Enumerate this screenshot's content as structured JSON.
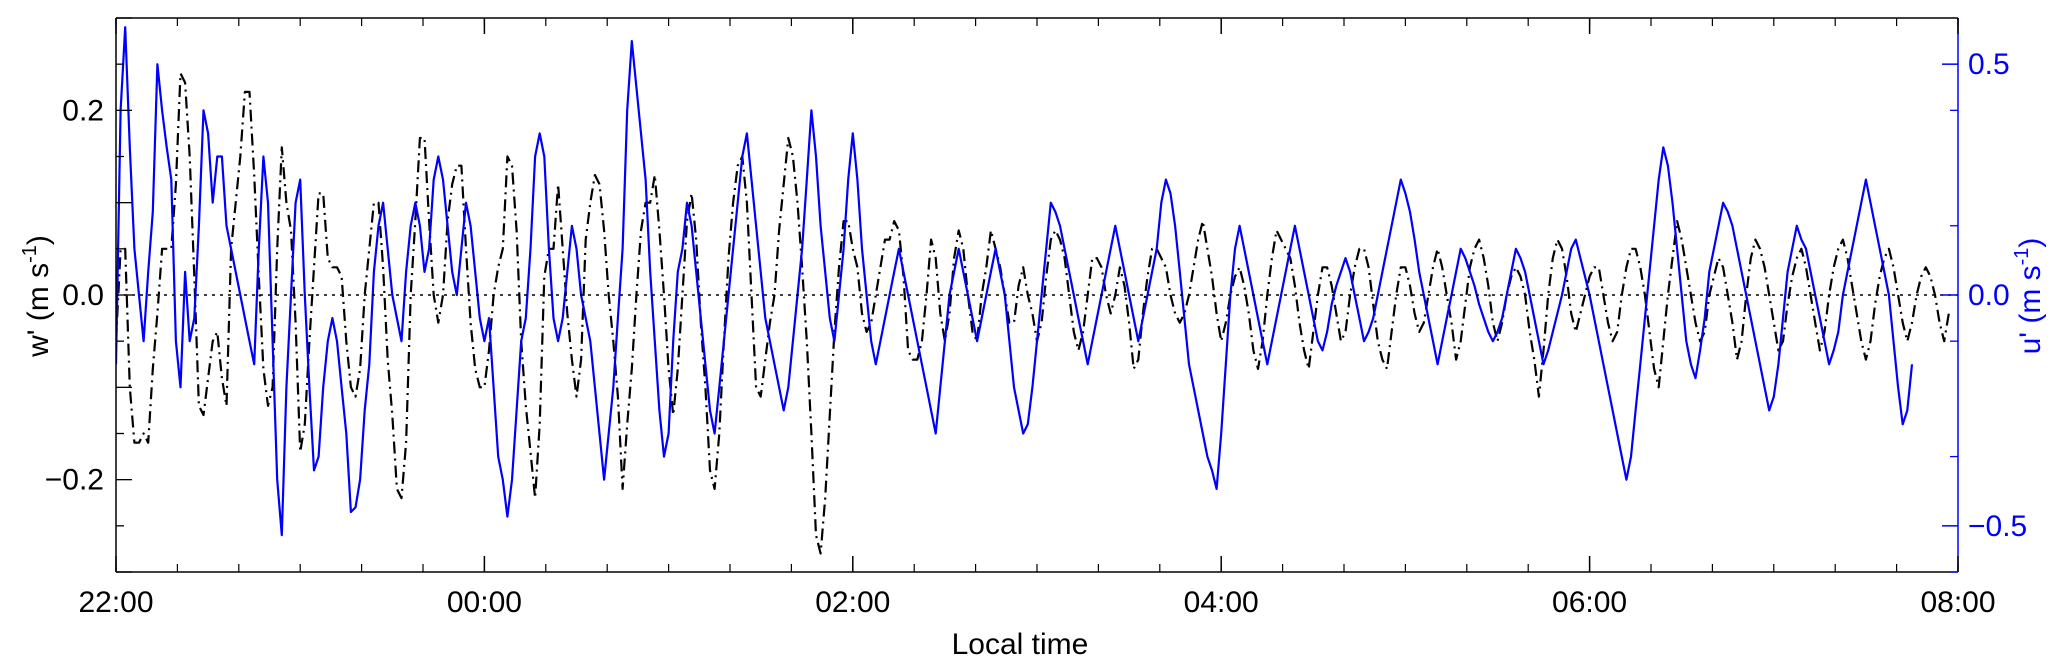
{
  "chart_data": {
    "type": "line",
    "xlabel": "Local time",
    "ylabel_left": "w' (m s",
    "ylabel_left_sup": "-1",
    "ylabel_left_end": ")",
    "ylabel_right": "u' (m s",
    "ylabel_right_sup": "-1",
    "ylabel_right_end": ")",
    "xlim_hours": [
      0,
      10
    ],
    "x_tick_labels": [
      {
        "h": 0,
        "label": "22:00"
      },
      {
        "h": 2,
        "label": "00:00"
      },
      {
        "h": 4,
        "label": "02:00"
      },
      {
        "h": 6,
        "label": "04:00"
      },
      {
        "h": 8,
        "label": "06:00"
      },
      {
        "h": 10,
        "label": "08:00"
      }
    ],
    "x_minor_step_hours": 0.333333,
    "ylim_left": [
      -0.3,
      0.3
    ],
    "y_left_ticks": [
      {
        "v": 0.2,
        "label": "0.2"
      },
      {
        "v": 0.0,
        "label": "0.0"
      },
      {
        "v": -0.2,
        "label": "−0.2"
      }
    ],
    "ylim_right": [
      -0.6,
      0.6
    ],
    "y_right_ticks": [
      {
        "v": 0.5,
        "label": "0.5"
      },
      {
        "v": 0.0,
        "label": "0.0"
      },
      {
        "v": -0.5,
        "label": "−0.5"
      }
    ],
    "zero_line": true,
    "colors": {
      "w": "#000000",
      "u": "#0000ff",
      "axes": "#000000",
      "right_axis": "#0000ff"
    },
    "series": [
      {
        "axis": "left",
        "style": "dash-dot",
        "color": "#000000",
        "x_step_hours": 0.025,
        "values": [
          -0.05,
          0.05,
          0.05,
          -0.1,
          -0.16,
          -0.16,
          -0.15,
          -0.16,
          -0.08,
          -0.02,
          0.05,
          0.05,
          0.05,
          0.12,
          0.24,
          0.23,
          0.15,
          0.02,
          -0.12,
          -0.13,
          -0.09,
          -0.05,
          -0.04,
          -0.09,
          -0.12,
          0.05,
          0.1,
          0.15,
          0.22,
          0.22,
          0.13,
          0.02,
          -0.08,
          -0.12,
          -0.1,
          0.05,
          0.16,
          0.1,
          0.07,
          -0.03,
          -0.17,
          -0.14,
          -0.05,
          0.03,
          0.11,
          0.11,
          0.04,
          0.03,
          0.03,
          0.02,
          -0.05,
          -0.1,
          -0.11,
          -0.08,
          0.0,
          0.05,
          0.1,
          0.1,
          0.03,
          -0.07,
          -0.13,
          -0.21,
          -0.22,
          -0.16,
          0.0,
          0.08,
          0.17,
          0.17,
          0.08,
          0.0,
          -0.03,
          0.0,
          0.08,
          0.12,
          0.14,
          0.14,
          0.05,
          -0.03,
          -0.08,
          -0.1,
          -0.1,
          -0.06,
          0.0,
          0.03,
          0.05,
          0.15,
          0.14,
          0.07,
          -0.05,
          -0.12,
          -0.17,
          -0.22,
          -0.14,
          0.02,
          0.05,
          0.05,
          0.12,
          0.05,
          -0.02,
          -0.07,
          -0.11,
          -0.07,
          0.06,
          0.1,
          0.13,
          0.12,
          0.07,
          0.0,
          -0.05,
          -0.11,
          -0.21,
          -0.14,
          -0.08,
          0.0,
          0.07,
          0.1,
          0.1,
          0.13,
          0.07,
          0.0,
          -0.08,
          -0.13,
          -0.08,
          0.0,
          0.08,
          0.11,
          0.06,
          -0.03,
          -0.1,
          -0.19,
          -0.21,
          -0.15,
          -0.05,
          0.04,
          0.1,
          0.14,
          0.15,
          0.1,
          0.0,
          -0.1,
          -0.11,
          -0.07,
          -0.03,
          0.0,
          0.07,
          0.12,
          0.17,
          0.15,
          0.1,
          0.03,
          -0.05,
          -0.15,
          -0.26,
          -0.28,
          -0.22,
          -0.13,
          -0.04,
          0.03,
          0.08,
          0.08,
          0.05,
          0.03,
          -0.02,
          -0.04,
          -0.03,
          0.0,
          0.03,
          0.06,
          0.06,
          0.08,
          0.07,
          0.02,
          -0.06,
          -0.07,
          -0.07,
          -0.05,
          0.0,
          0.06,
          0.04,
          -0.02,
          -0.05,
          -0.02,
          0.04,
          0.07,
          0.05,
          0.0,
          -0.04,
          -0.05,
          0.0,
          0.03,
          0.07,
          0.05,
          0.03,
          0.0,
          -0.03,
          -0.03,
          0.01,
          0.03,
          0.0,
          -0.02,
          -0.05,
          -0.03,
          0.02,
          0.06,
          0.07,
          0.06,
          0.04,
          0.0,
          -0.04,
          -0.06,
          -0.04,
          0.0,
          0.04,
          0.04,
          0.03,
          0.0,
          -0.02,
          0.0,
          0.03,
          0.01,
          -0.03,
          -0.08,
          -0.07,
          -0.02,
          0.02,
          0.05,
          0.05,
          0.04,
          0.03,
          0.0,
          -0.02,
          -0.03,
          -0.02,
          0.0,
          0.03,
          0.06,
          0.08,
          0.05,
          0.02,
          -0.02,
          -0.05,
          -0.03,
          0.0,
          0.02,
          0.03,
          0.01,
          -0.02,
          -0.06,
          -0.08,
          -0.05,
          0.0,
          0.04,
          0.07,
          0.06,
          0.05,
          0.04,
          0.01,
          -0.03,
          -0.06,
          -0.08,
          -0.04,
          0.0,
          0.03,
          0.03,
          0.01,
          -0.02,
          -0.05,
          -0.04,
          0.0,
          0.03,
          0.05,
          0.05,
          0.03,
          -0.01,
          -0.05,
          -0.07,
          -0.08,
          -0.04,
          0.0,
          0.03,
          0.03,
          0.01,
          -0.02,
          -0.04,
          -0.03,
          0.0,
          0.03,
          0.05,
          0.03,
          0.0,
          -0.03,
          -0.07,
          -0.05,
          -0.01,
          0.03,
          0.05,
          0.06,
          0.04,
          0.01,
          -0.03,
          -0.05,
          -0.03,
          0.0,
          0.02,
          0.03,
          0.02,
          0.0,
          -0.04,
          -0.07,
          -0.11,
          -0.06,
          0.0,
          0.04,
          0.06,
          0.05,
          0.02,
          -0.02,
          -0.04,
          -0.02,
          0.0,
          0.02,
          0.03,
          0.03,
          0.0,
          -0.03,
          -0.05,
          -0.04,
          0.0,
          0.03,
          0.05,
          0.05,
          0.03,
          0.0,
          -0.04,
          -0.08,
          -0.1,
          -0.05,
          0.0,
          0.04,
          0.08,
          0.06,
          0.03,
          0.0,
          -0.03,
          -0.05,
          -0.04,
          0.0,
          0.02,
          0.04,
          0.03,
          0.0,
          -0.03,
          -0.07,
          -0.05,
          0.0,
          0.04,
          0.06,
          0.05,
          0.03,
          0.0,
          -0.03,
          -0.06,
          -0.05,
          -0.01,
          0.02,
          0.04,
          0.05,
          0.03,
          0.0,
          -0.03,
          -0.06,
          -0.04,
          0.0,
          0.03,
          0.05,
          0.06,
          0.04,
          0.01,
          -0.02,
          -0.05,
          -0.07,
          -0.05,
          -0.01,
          0.02,
          0.04,
          0.05,
          0.03,
          0.0,
          -0.03,
          -0.05,
          -0.03,
          0.0,
          0.02,
          0.03,
          0.02,
          0.0,
          -0.03,
          -0.05,
          -0.02
        ]
      },
      {
        "axis": "right",
        "style": "solid",
        "color": "#0000ff",
        "x_step_hours": 0.025,
        "values": [
          -0.15,
          0.4,
          0.58,
          0.32,
          0.1,
          0.0,
          -0.1,
          0.05,
          0.18,
          0.5,
          0.4,
          0.32,
          0.25,
          -0.1,
          -0.2,
          0.05,
          -0.1,
          -0.05,
          0.15,
          0.4,
          0.35,
          0.2,
          0.3,
          0.3,
          0.15,
          0.1,
          0.05,
          0.0,
          -0.05,
          -0.1,
          -0.15,
          0.1,
          0.3,
          0.2,
          -0.1,
          -0.4,
          -0.52,
          -0.2,
          0.0,
          0.2,
          0.25,
          0.0,
          -0.2,
          -0.38,
          -0.35,
          -0.2,
          -0.1,
          -0.05,
          -0.1,
          -0.2,
          -0.3,
          -0.47,
          -0.46,
          -0.4,
          -0.25,
          -0.15,
          0.05,
          0.15,
          0.2,
          0.1,
          0.0,
          -0.05,
          -0.1,
          0.05,
          0.15,
          0.2,
          0.15,
          0.05,
          0.1,
          0.25,
          0.3,
          0.25,
          0.15,
          0.05,
          0.0,
          0.1,
          0.2,
          0.15,
          0.05,
          -0.05,
          -0.1,
          -0.05,
          -0.2,
          -0.35,
          -0.4,
          -0.48,
          -0.4,
          -0.25,
          -0.1,
          -0.05,
          0.1,
          0.3,
          0.35,
          0.3,
          0.1,
          -0.05,
          -0.1,
          -0.05,
          0.05,
          0.15,
          0.1,
          0.0,
          -0.05,
          -0.1,
          -0.2,
          -0.3,
          -0.4,
          -0.3,
          -0.2,
          -0.05,
          0.1,
          0.4,
          0.55,
          0.45,
          0.35,
          0.25,
          0.05,
          -0.1,
          -0.25,
          -0.35,
          -0.3,
          -0.1,
          0.05,
          0.1,
          0.2,
          0.15,
          0.05,
          -0.05,
          -0.15,
          -0.25,
          -0.3,
          -0.2,
          -0.1,
          0.0,
          0.1,
          0.2,
          0.3,
          0.35,
          0.25,
          0.15,
          0.05,
          -0.05,
          -0.1,
          -0.15,
          -0.2,
          -0.25,
          -0.2,
          -0.1,
          0.0,
          0.1,
          0.25,
          0.4,
          0.3,
          0.15,
          0.05,
          -0.05,
          -0.1,
          0.0,
          0.1,
          0.25,
          0.35,
          0.25,
          0.1,
          0.0,
          -0.1,
          -0.15,
          -0.1,
          -0.05,
          0.0,
          0.05,
          0.1,
          0.05,
          0.0,
          -0.05,
          -0.1,
          -0.15,
          -0.2,
          -0.25,
          -0.3,
          -0.2,
          -0.1,
          0.0,
          0.05,
          0.1,
          0.05,
          0.0,
          -0.05,
          -0.1,
          -0.05,
          0.0,
          0.05,
          0.1,
          0.05,
          0.0,
          -0.1,
          -0.2,
          -0.25,
          -0.3,
          -0.28,
          -0.2,
          -0.1,
          0.0,
          0.1,
          0.2,
          0.18,
          0.15,
          0.1,
          0.05,
          0.0,
          -0.05,
          -0.1,
          -0.15,
          -0.1,
          -0.05,
          0.0,
          0.05,
          0.1,
          0.15,
          0.1,
          0.05,
          0.0,
          -0.05,
          -0.1,
          -0.05,
          0.0,
          0.05,
          0.1,
          0.2,
          0.25,
          0.22,
          0.15,
          0.05,
          -0.05,
          -0.15,
          -0.2,
          -0.25,
          -0.3,
          -0.35,
          -0.38,
          -0.42,
          -0.3,
          -0.15,
          0.0,
          0.1,
          0.15,
          0.1,
          0.05,
          0.0,
          -0.05,
          -0.1,
          -0.15,
          -0.1,
          -0.05,
          0.0,
          0.05,
          0.1,
          0.15,
          0.1,
          0.05,
          0.0,
          -0.05,
          -0.1,
          -0.12,
          -0.08,
          -0.02,
          0.02,
          0.05,
          0.08,
          0.05,
          0.0,
          -0.05,
          -0.1,
          -0.08,
          -0.05,
          0.0,
          0.05,
          0.1,
          0.15,
          0.2,
          0.25,
          0.22,
          0.18,
          0.12,
          0.05,
          0.0,
          -0.05,
          -0.1,
          -0.15,
          -0.1,
          -0.05,
          0.0,
          0.05,
          0.1,
          0.08,
          0.05,
          0.02,
          -0.02,
          -0.05,
          -0.08,
          -0.1,
          -0.08,
          -0.05,
          0.0,
          0.05,
          0.1,
          0.08,
          0.05,
          0.0,
          -0.05,
          -0.1,
          -0.15,
          -0.12,
          -0.08,
          -0.04,
          0.0,
          0.05,
          0.1,
          0.12,
          0.08,
          0.04,
          0.0,
          -0.05,
          -0.1,
          -0.15,
          -0.2,
          -0.25,
          -0.3,
          -0.35,
          -0.4,
          -0.35,
          -0.25,
          -0.15,
          -0.05,
          0.05,
          0.15,
          0.25,
          0.32,
          0.28,
          0.2,
          0.1,
          0.0,
          -0.1,
          -0.15,
          -0.18,
          -0.12,
          -0.05,
          0.05,
          0.1,
          0.15,
          0.2,
          0.18,
          0.15,
          0.1,
          0.05,
          0.0,
          -0.05,
          -0.1,
          -0.15,
          -0.2,
          -0.25,
          -0.22,
          -0.15,
          -0.05,
          0.05,
          0.1,
          0.15,
          0.12,
          0.1,
          0.05,
          0.0,
          -0.05,
          -0.1,
          -0.15,
          -0.12,
          -0.08,
          0.0,
          0.05,
          0.1,
          0.15,
          0.2,
          0.25,
          0.2,
          0.15,
          0.1,
          0.05,
          0.0,
          -0.1,
          -0.2,
          -0.28,
          -0.25,
          -0.15
        ]
      }
    ]
  }
}
